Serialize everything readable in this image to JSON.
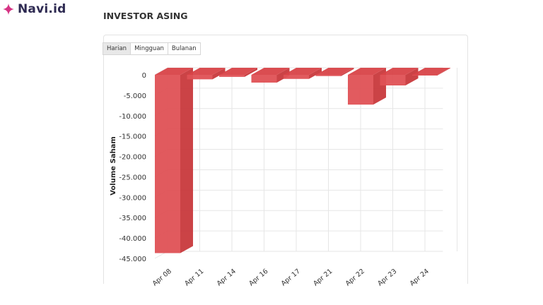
{
  "brand": {
    "name": "Navi.id",
    "icon": "sparkle-icon",
    "color": "#d63384"
  },
  "section": {
    "title": "INVESTOR ASING"
  },
  "tabs": [
    {
      "label": "Harian",
      "active": true
    },
    {
      "label": "Mingguan",
      "active": false
    },
    {
      "label": "Bulanan",
      "active": false
    }
  ],
  "colors": {
    "bar": "#e05256",
    "bar_side": "#c9393d",
    "bar_top": "#d94448",
    "grid": "#e6e6e6"
  },
  "chart_data": {
    "type": "bar",
    "title": "INVESTOR ASING",
    "xlabel": "",
    "ylabel": "Volume Saham",
    "categories": [
      "Apr 08",
      "Apr 11",
      "Apr 14",
      "Apr 16",
      "Apr 17",
      "Apr 21",
      "Apr 22",
      "Apr 23",
      "Apr 24"
    ],
    "values": [
      -43700,
      -1100,
      -500,
      -1900,
      -1000,
      -300,
      -7300,
      -2600,
      -100
    ],
    "yticks": [
      "0",
      "-5.000",
      "-10.000",
      "-15.000",
      "-20.000",
      "-25.000",
      "-30.000",
      "-35.000",
      "-40.000",
      "-45.000"
    ],
    "ylim": [
      -45000,
      0
    ],
    "grid": true,
    "legend": "none",
    "style": "3d-column"
  }
}
